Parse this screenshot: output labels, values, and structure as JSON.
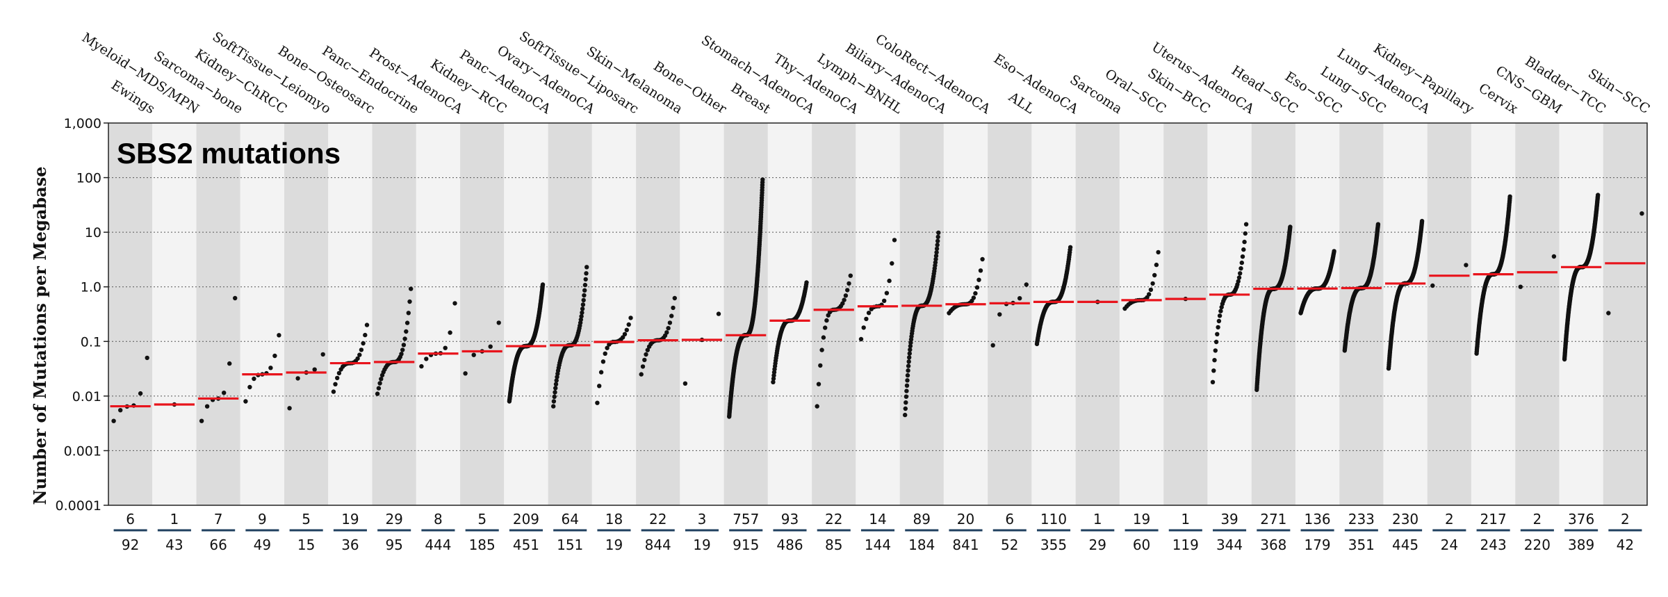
{
  "chart_data": {
    "type": "scatter",
    "title": "SBS2 mutations",
    "ylabel": "Number of Mutations per Megabase",
    "yscale": "log",
    "ylim": [
      0.0001,
      1000
    ],
    "yticks": [
      {
        "value": 1000,
        "label": "1,000"
      },
      {
        "value": 100,
        "label": "100"
      },
      {
        "value": 10,
        "label": "10"
      },
      {
        "value": 1,
        "label": "1.0"
      },
      {
        "value": 0.1,
        "label": "0.1"
      },
      {
        "value": 0.01,
        "label": "0.01"
      },
      {
        "value": 0.001,
        "label": "0.001"
      },
      {
        "value": 0.0001,
        "label": "0.0001"
      }
    ],
    "colors": {
      "median": "#e8141c",
      "point": "#111111",
      "band_dark": "#dcdcdc",
      "band_light": "#f3f3f3",
      "divider": "#1f3f5f"
    },
    "categories": [
      {
        "name": "Ewings",
        "n_with": "6",
        "n_total": "92",
        "median": 0.0065,
        "min": 0.0035,
        "max": 0.05
      },
      {
        "name": "Myeloid−MDS/MPN",
        "n_with": "1",
        "n_total": "43",
        "median": 0.007,
        "min": 0.007,
        "max": 0.007
      },
      {
        "name": "Sarcoma−bone",
        "n_with": "7",
        "n_total": "66",
        "median": 0.009,
        "min": 0.0035,
        "max": 0.62
      },
      {
        "name": "Kidney−ChRCC",
        "n_with": "9",
        "n_total": "49",
        "median": 0.025,
        "min": 0.008,
        "max": 0.13
      },
      {
        "name": "SoftTissue−Leiomyo",
        "n_with": "5",
        "n_total": "15",
        "median": 0.027,
        "min": 0.006,
        "max": 0.058
      },
      {
        "name": "Bone−Osteosarc",
        "n_with": "19",
        "n_total": "36",
        "median": 0.04,
        "min": 0.012,
        "max": 0.2
      },
      {
        "name": "Panc−Endocrine",
        "n_with": "29",
        "n_total": "95",
        "median": 0.042,
        "min": 0.011,
        "max": 0.92
      },
      {
        "name": "Prost−AdenoCA",
        "n_with": "8",
        "n_total": "444",
        "median": 0.06,
        "min": 0.035,
        "max": 0.5
      },
      {
        "name": "Kidney−RCC",
        "n_with": "5",
        "n_total": "185",
        "median": 0.066,
        "min": 0.026,
        "max": 0.22
      },
      {
        "name": "Panc−AdenoCA",
        "n_with": "209",
        "n_total": "451",
        "median": 0.082,
        "min": 0.008,
        "max": 1.1
      },
      {
        "name": "Ovary−AdenoCA",
        "n_with": "64",
        "n_total": "151",
        "median": 0.085,
        "min": 0.0065,
        "max": 2.3
      },
      {
        "name": "SoftTissue−Liposarc",
        "n_with": "18",
        "n_total": "19",
        "median": 0.098,
        "min": 0.0075,
        "max": 0.27
      },
      {
        "name": "Skin−Melanoma",
        "n_with": "22",
        "n_total": "844",
        "median": 0.105,
        "min": 0.025,
        "max": 0.62
      },
      {
        "name": "Bone−Other",
        "n_with": "3",
        "n_total": "19",
        "median": 0.107,
        "min": 0.017,
        "max": 0.32
      },
      {
        "name": "Breast",
        "n_with": "757",
        "n_total": "915",
        "median": 0.13,
        "min": 0.0042,
        "max": 92
      },
      {
        "name": "Stomach−AdenoCA",
        "n_with": "93",
        "n_total": "486",
        "median": 0.24,
        "min": 0.018,
        "max": 1.2
      },
      {
        "name": "Thy−AdenoCA",
        "n_with": "22",
        "n_total": "85",
        "median": 0.38,
        "min": 0.0065,
        "max": 1.6
      },
      {
        "name": "Lymph−BNHL",
        "n_with": "14",
        "n_total": "144",
        "median": 0.44,
        "min": 0.11,
        "max": 7.2
      },
      {
        "name": "Biliary−AdenoCA",
        "n_with": "89",
        "n_total": "184",
        "median": 0.45,
        "min": 0.0045,
        "max": 9.8
      },
      {
        "name": "ColoRect−AdenoCA",
        "n_with": "20",
        "n_total": "841",
        "median": 0.48,
        "min": 0.33,
        "max": 3.2
      },
      {
        "name": "ALL",
        "n_with": "6",
        "n_total": "52",
        "median": 0.5,
        "min": 0.085,
        "max": 1.1
      },
      {
        "name": "Eso−AdenoCA",
        "n_with": "110",
        "n_total": "355",
        "median": 0.53,
        "min": 0.09,
        "max": 5.3
      },
      {
        "name": "Sarcoma",
        "n_with": "1",
        "n_total": "29",
        "median": 0.53,
        "min": 0.53,
        "max": 0.53
      },
      {
        "name": "Oral−SCC",
        "n_with": "19",
        "n_total": "60",
        "median": 0.57,
        "min": 0.4,
        "max": 4.3
      },
      {
        "name": "Skin−BCC",
        "n_with": "1",
        "n_total": "119",
        "median": 0.6,
        "min": 0.6,
        "max": 0.6
      },
      {
        "name": "Uterus−AdenoCA",
        "n_with": "39",
        "n_total": "344",
        "median": 0.72,
        "min": 0.018,
        "max": 14
      },
      {
        "name": "Head−SCC",
        "n_with": "271",
        "n_total": "368",
        "median": 0.92,
        "min": 0.013,
        "max": 12.5
      },
      {
        "name": "Eso−SCC",
        "n_with": "136",
        "n_total": "179",
        "median": 0.93,
        "min": 0.33,
        "max": 4.5
      },
      {
        "name": "Lung−SCC",
        "n_with": "233",
        "n_total": "351",
        "median": 0.95,
        "min": 0.068,
        "max": 14
      },
      {
        "name": "Lung−AdenoCA",
        "n_with": "230",
        "n_total": "445",
        "median": 1.15,
        "min": 0.032,
        "max": 16
      },
      {
        "name": "Kidney−Papillary",
        "n_with": "2",
        "n_total": "24",
        "median": 1.6,
        "min": 1.05,
        "max": 2.5
      },
      {
        "name": "Cervix",
        "n_with": "217",
        "n_total": "243",
        "median": 1.7,
        "min": 0.06,
        "max": 45
      },
      {
        "name": "CNS−GBM",
        "n_with": "2",
        "n_total": "220",
        "median": 1.85,
        "min": 1.0,
        "max": 3.6
      },
      {
        "name": "Bladder−TCC",
        "n_with": "376",
        "n_total": "389",
        "median": 2.3,
        "min": 0.047,
        "max": 48
      },
      {
        "name": "Skin−SCC",
        "n_with": "2",
        "n_total": "42",
        "median": 2.7,
        "min": 0.33,
        "max": 22
      }
    ]
  }
}
